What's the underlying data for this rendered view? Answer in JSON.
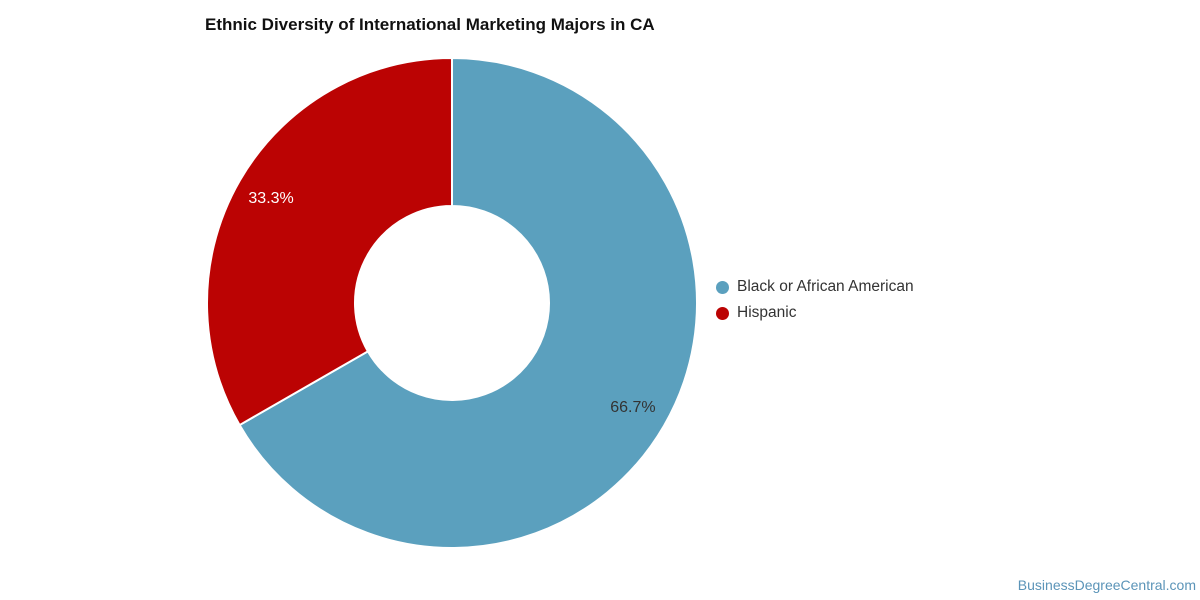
{
  "chart": {
    "title": "Ethnic Diversity of International Marketing Majors in CA"
  },
  "chart_data": {
    "type": "pie",
    "subtype": "donut",
    "title": "Ethnic Diversity of International Marketing Majors in CA",
    "categories": [
      "Black or African American",
      "Hispanic"
    ],
    "values": [
      66.7,
      33.3
    ],
    "colors": [
      "#5BA0BE",
      "#BB0303"
    ],
    "data_labels": [
      "66.7%",
      "33.3%"
    ],
    "data_label_colors": [
      "#333333",
      "#FFFFFF"
    ],
    "start_angle_deg": 0,
    "direction": "clockwise",
    "legend_position": "right",
    "outer_radius": 245,
    "inner_radius": 97,
    "label_radius": 209,
    "slice_border_color": "#FFFFFF"
  },
  "legend": {
    "items": [
      {
        "label": "Black or African American",
        "color": "#5BA0BE"
      },
      {
        "label": "Hispanic",
        "color": "#BB0303"
      }
    ]
  },
  "footer": {
    "watermark_text": "BusinessDegreeCentral.com",
    "watermark_color": "#5B94B8"
  }
}
